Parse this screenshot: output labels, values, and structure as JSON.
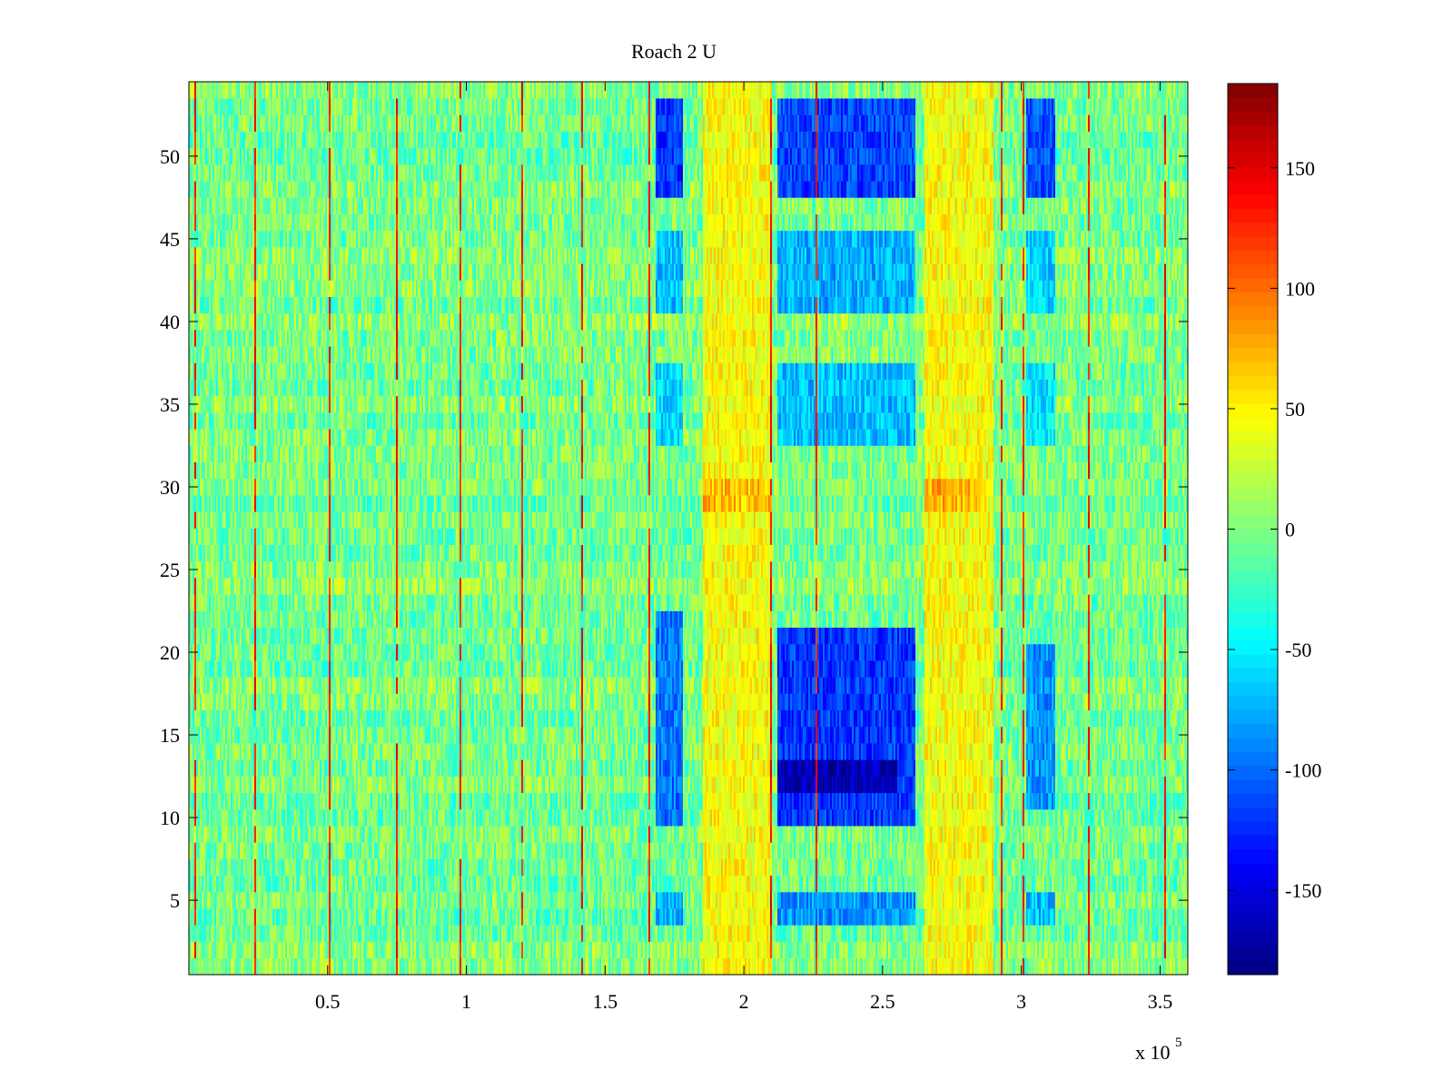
{
  "chart_data": {
    "type": "heatmap",
    "title": "Roach 2 U",
    "xlabel": "",
    "ylabel": "",
    "x_exponent_label": "x 10",
    "x_exponent_power": "5",
    "x_scale_factor": 100000,
    "xlim": [
      0,
      360000
    ],
    "ylim": [
      0.5,
      54.5
    ],
    "x_ticks": [
      50000,
      100000,
      150000,
      200000,
      250000,
      300000,
      350000
    ],
    "x_tick_labels": [
      "0.5",
      "1",
      "1.5",
      "2",
      "2.5",
      "3",
      "3.5"
    ],
    "y_ticks": [
      5,
      10,
      15,
      20,
      25,
      30,
      35,
      40,
      45,
      50
    ],
    "y_tick_labels": [
      "5",
      "10",
      "15",
      "20",
      "25",
      "30",
      "35",
      "40",
      "45",
      "50"
    ],
    "rows": 54,
    "colormap": "jet",
    "clim": [
      -185,
      185
    ],
    "colorbar_ticks": [
      -150,
      -100,
      -50,
      0,
      50,
      100,
      150
    ],
    "colorbar_tick_labels": [
      "-150",
      "-100",
      "-50",
      "0",
      "50",
      "100",
      "150"
    ],
    "background_value_range": [
      -35,
      30
    ],
    "strong_bands": [
      {
        "x_range": [
          168000,
          178000
        ],
        "y_range": [
          47.5,
          53.5
        ],
        "value": -120
      },
      {
        "x_range": [
          212000,
          262000
        ],
        "y_range": [
          47.5,
          53.5
        ],
        "value": -115
      },
      {
        "x_range": [
          302000,
          312000
        ],
        "y_range": [
          47.5,
          53.5
        ],
        "value": -110
      },
      {
        "x_range": [
          168000,
          178000
        ],
        "y_range": [
          9.5,
          22.5
        ],
        "value": -95
      },
      {
        "x_range": [
          212000,
          262000
        ],
        "y_range": [
          9.5,
          21.5
        ],
        "value": -120
      },
      {
        "x_range": [
          212000,
          255000
        ],
        "y_range": [
          11.5,
          13.5
        ],
        "value": -165
      },
      {
        "x_range": [
          302000,
          312000
        ],
        "y_range": [
          10.5,
          20.5
        ],
        "value": -85
      },
      {
        "x_range": [
          168000,
          178000
        ],
        "y_range": [
          40.5,
          45.5
        ],
        "value": -70
      },
      {
        "x_range": [
          212000,
          262000
        ],
        "y_range": [
          40.5,
          45.5
        ],
        "value": -75
      },
      {
        "x_range": [
          302000,
          312000
        ],
        "y_range": [
          40.5,
          45.5
        ],
        "value": -60
      },
      {
        "x_range": [
          168000,
          178000
        ],
        "y_range": [
          32.5,
          37.5
        ],
        "value": -60
      },
      {
        "x_range": [
          212000,
          262000
        ],
        "y_range": [
          32.5,
          37.5
        ],
        "value": -70
      },
      {
        "x_range": [
          302000,
          312000
        ],
        "y_range": [
          32.5,
          37.5
        ],
        "value": -55
      },
      {
        "x_range": [
          168000,
          178000
        ],
        "y_range": [
          3.5,
          5.5
        ],
        "value": -75
      },
      {
        "x_range": [
          212000,
          262000
        ],
        "y_range": [
          3.5,
          5.5
        ],
        "value": -85
      },
      {
        "x_range": [
          302000,
          312000
        ],
        "y_range": [
          3.5,
          5.5
        ],
        "value": -70
      },
      {
        "x_range": [
          185000,
          210000
        ],
        "y_range": [
          0.5,
          54.5
        ],
        "value": 45
      },
      {
        "x_range": [
          265000,
          290000
        ],
        "y_range": [
          0.5,
          54.5
        ],
        "value": 45
      },
      {
        "x_range": [
          185000,
          210000
        ],
        "y_range": [
          28.5,
          30.5
        ],
        "value": 70
      },
      {
        "x_range": [
          265000,
          285000
        ],
        "y_range": [
          28.5,
          30.5
        ],
        "value": 75
      }
    ],
    "vertical_spikes": [
      {
        "x": 2000,
        "value": 150
      },
      {
        "x": 24000,
        "value": 150
      },
      {
        "x": 51000,
        "value": 150
      },
      {
        "x": 75000,
        "value": 150
      },
      {
        "x": 98000,
        "value": 150
      },
      {
        "x": 120000,
        "value": 150
      },
      {
        "x": 142000,
        "value": 150
      },
      {
        "x": 166000,
        "value": 150
      },
      {
        "x": 210000,
        "value": 150
      },
      {
        "x": 226000,
        "value": 150
      },
      {
        "x": 293000,
        "value": 150
      },
      {
        "x": 301000,
        "value": 150
      },
      {
        "x": 324000,
        "value": 150
      },
      {
        "x": 352000,
        "value": 150
      }
    ]
  }
}
